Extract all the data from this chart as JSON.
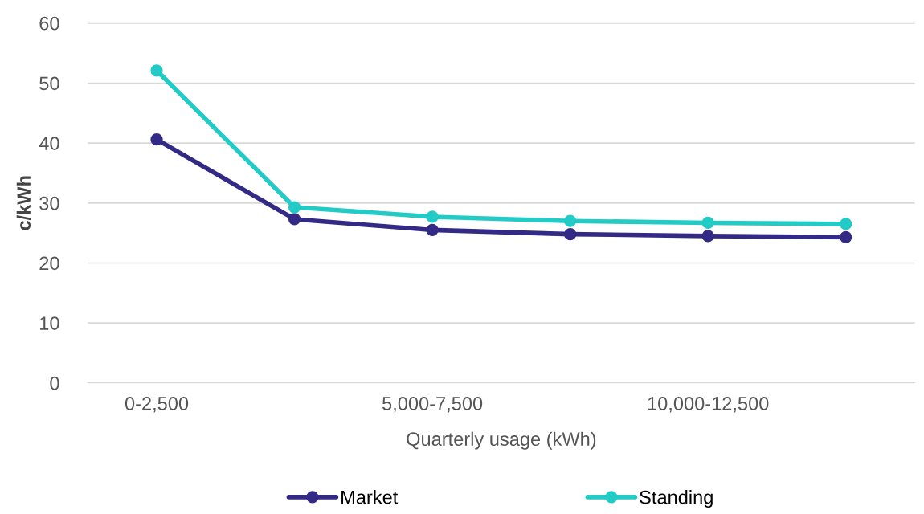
{
  "chart_data": {
    "type": "line",
    "xlabel": "Quarterly usage (kWh)",
    "ylabel": "c/kWh",
    "categories": [
      "0-2,500",
      null,
      "5,000-7,500",
      null,
      "10,000-12,500",
      null
    ],
    "series": [
      {
        "name": "Market",
        "color": "#332a86",
        "values": [
          40.6,
          27.3,
          25.5,
          24.8,
          24.5,
          24.3
        ]
      },
      {
        "name": "Standing",
        "color": "#22cbc5",
        "values": [
          52.1,
          29.3,
          27.7,
          27.0,
          26.7,
          26.5
        ]
      }
    ],
    "ylim": [
      0,
      60
    ],
    "yticks": [
      0,
      10,
      20,
      30,
      40,
      50,
      60
    ],
    "grid": "y",
    "legend": "bottom",
    "marker": "circle",
    "line_style": "solid"
  }
}
